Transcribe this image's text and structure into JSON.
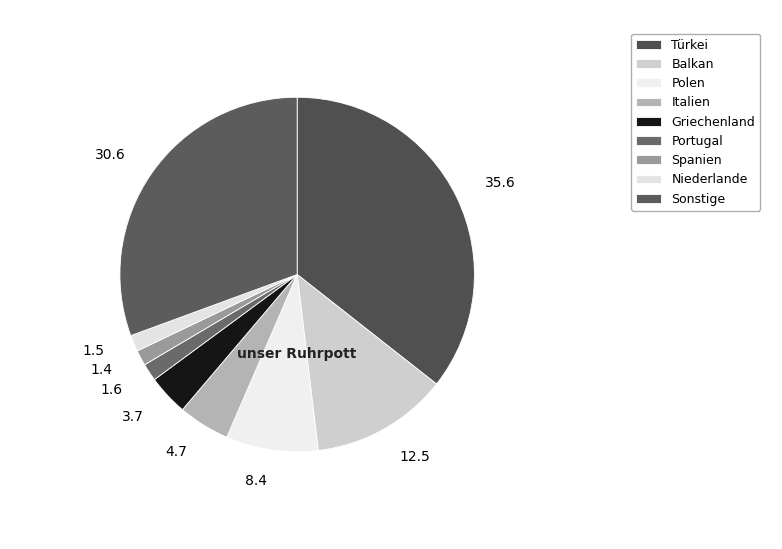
{
  "chart_data": {
    "type": "pie",
    "categories": [
      "Türkei",
      "Balkan",
      "Polen",
      "Italien",
      "Griechenland",
      "Portugal",
      "Spanien",
      "Niederlande",
      "Sonstige"
    ],
    "values": [
      35.6,
      12.5,
      8.4,
      4.7,
      3.7,
      1.6,
      1.4,
      1.5,
      30.6
    ],
    "colors": [
      "#505050",
      "#cfcfcf",
      "#f0f0f0",
      "#b4b4b4",
      "#151515",
      "#6a6a6a",
      "#9a9a9a",
      "#e4e4e4",
      "#5c5c5c"
    ],
    "annotations": [
      "unser Ruhrpott"
    ],
    "data_labels": true,
    "legend": "upper right"
  }
}
